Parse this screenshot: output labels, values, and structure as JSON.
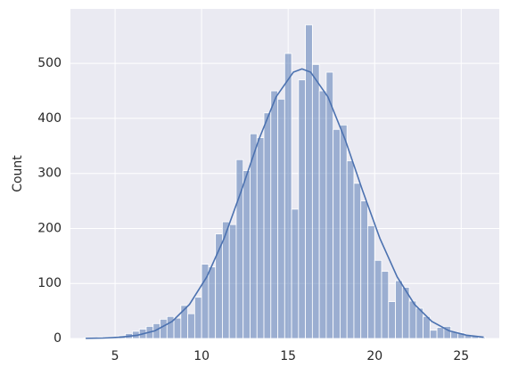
{
  "chart_data": {
    "type": "histogram",
    "ylabel": "Count",
    "bins": [
      3.2,
      3.6,
      4.0,
      4.4,
      4.8,
      5.2,
      5.6,
      6.0,
      6.4,
      6.8,
      7.2,
      7.6,
      8.0,
      8.4,
      8.8,
      9.2,
      9.6,
      10.0,
      10.4,
      10.8,
      11.2,
      11.6,
      12.0,
      12.4,
      12.8,
      13.2,
      13.6,
      14.0,
      14.4,
      14.8,
      15.2,
      15.6,
      16.0,
      16.4,
      16.8,
      17.2,
      17.6,
      18.0,
      18.4,
      18.8,
      19.2,
      19.6,
      20.0,
      20.4,
      20.8,
      21.2,
      21.6,
      22.0,
      22.4,
      22.8,
      23.2,
      23.6,
      24.0,
      24.4,
      24.8,
      25.2,
      25.6,
      26.0,
      26.4
    ],
    "counts": [
      1,
      1,
      2,
      3,
      3,
      5,
      9,
      13,
      17,
      22,
      27,
      35,
      40,
      37,
      60,
      45,
      75,
      135,
      130,
      190,
      212,
      207,
      325,
      305,
      372,
      365,
      410,
      450,
      435,
      518,
      235,
      470,
      570,
      498,
      450,
      484,
      380,
      388,
      323,
      282,
      250,
      205,
      142,
      122,
      67,
      105,
      93,
      68,
      55,
      40,
      15,
      20,
      22,
      12,
      10,
      6,
      4,
      2
    ],
    "color": "#4c72b0",
    "kde": {
      "x": [
        3.3,
        4.3,
        5.3,
        6.3,
        7.3,
        8.3,
        9.3,
        10.3,
        11.3,
        12.3,
        13.3,
        14.3,
        15.3,
        15.8,
        16.3,
        17.3,
        18.3,
        19.3,
        20.3,
        21.3,
        22.3,
        23.3,
        24.3,
        25.3,
        26.3
      ],
      "y": [
        0.2,
        0.8,
        2.3,
        6,
        14,
        31,
        62,
        112,
        182,
        269,
        361,
        439,
        484,
        490,
        484,
        439,
        361,
        269,
        182,
        112,
        62,
        31,
        14,
        6,
        2.3
      ]
    },
    "xlim": [
      2.42,
      27.2
    ],
    "ylim": [
      0,
      599
    ],
    "xticks": [
      5,
      10,
      15,
      20,
      25
    ],
    "yticks": [
      0,
      100,
      200,
      300,
      400,
      500
    ],
    "grid": true
  }
}
